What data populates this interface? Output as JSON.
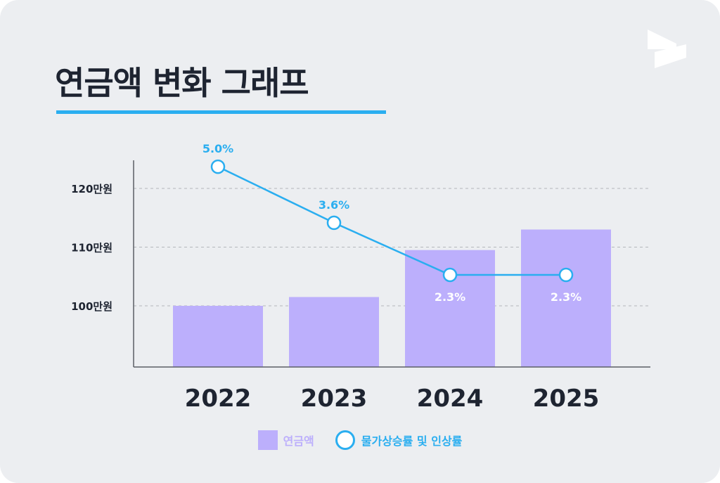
{
  "title": "연금액 변화 그래프",
  "colors": {
    "bar": "#bcaffc",
    "line": "#2aaef0",
    "axis": "#5b5f66",
    "text": "#1e2431",
    "background": "#eceef1"
  },
  "logo_icon": "brand-logo-icon",
  "chart_data": {
    "type": "bar",
    "categories": [
      "2022",
      "2023",
      "2024",
      "2025"
    ],
    "y_ticks": [
      {
        "value": 100,
        "label": "100만원"
      },
      {
        "value": 110,
        "label": "110만원"
      },
      {
        "value": 120,
        "label": "120만원"
      }
    ],
    "grid": "dashed horizontal",
    "bar_series": {
      "name": "연금액",
      "values": [
        100,
        101.5,
        109.5,
        113
      ],
      "unit": "만원"
    },
    "line_series": {
      "name": "물가상승률 및 인상률",
      "values": [
        5.0,
        3.6,
        2.3,
        2.3
      ],
      "labels": [
        "5.0%",
        "3.6%",
        "2.3%",
        "2.3%"
      ]
    },
    "legend_position": "bottom-center"
  }
}
